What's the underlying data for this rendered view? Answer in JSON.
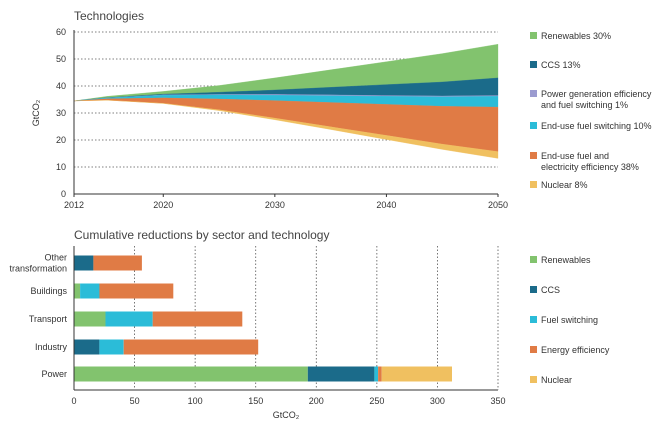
{
  "chart_data": [
    {
      "type": "area",
      "title": "Technologies",
      "ylabel": "GtCO₂",
      "ylim": [
        0,
        60
      ],
      "yticks": [
        0,
        10,
        20,
        30,
        40,
        50,
        60
      ],
      "xticks": [
        2012,
        2020,
        2030,
        2040,
        2050
      ],
      "x": [
        2012,
        2015,
        2020,
        2025,
        2030,
        2035,
        2040,
        2045,
        2050
      ],
      "baseline": [
        34.5,
        36.2,
        38.0,
        40.2,
        43.0,
        46.0,
        49.0,
        52.0,
        55.5
      ],
      "grid": "horizontal-dotted",
      "legend_position": "right",
      "series": [
        {
          "name": "Renewables 30%",
          "color": "#82c36e",
          "values": [
            0.0,
            0.5,
            1.0,
            2.5,
            4.5,
            6.5,
            8.5,
            10.5,
            12.5
          ]
        },
        {
          "name": "CCS 13%",
          "color": "#1b6b8a",
          "values": [
            0.0,
            0.1,
            0.3,
            0.8,
            1.6,
            2.8,
            4.0,
            5.2,
            6.5
          ]
        },
        {
          "name": "Power generation efficiency and fuel switching 1%",
          "color": "#9b9bd0",
          "values": [
            0.0,
            0.05,
            0.1,
            0.2,
            0.3,
            0.3,
            0.3,
            0.3,
            0.3
          ]
        },
        {
          "name": "End-use fuel switching 10%",
          "color": "#2bbcd8",
          "values": [
            0.0,
            0.3,
            1.0,
            1.5,
            2.0,
            2.5,
            3.0,
            3.5,
            4.0
          ]
        },
        {
          "name": "End-use fuel and electricity efficiency 38%",
          "color": "#e07b45",
          "values": [
            0.0,
            0.5,
            2.0,
            4.0,
            6.5,
            9.0,
            11.5,
            14.0,
            16.5
          ]
        },
        {
          "name": "Nuclear 8%",
          "color": "#f0c060",
          "values": [
            0.0,
            0.0,
            0.1,
            0.3,
            0.6,
            1.0,
            1.5,
            2.0,
            2.5
          ]
        }
      ]
    },
    {
      "type": "bar",
      "orientation": "horizontal",
      "stacked": true,
      "title": "Cumulative reductions by sector and technology",
      "xlabel": "GtCO₂",
      "xlim": [
        0,
        350
      ],
      "xticks": [
        0,
        50,
        100,
        150,
        200,
        250,
        300,
        350
      ],
      "grid": "vertical-dotted",
      "legend_position": "right",
      "categories": [
        "Other transformation",
        "Buildings",
        "Transport",
        "Industry",
        "Power"
      ],
      "category_lines": [
        [
          "Other",
          "transformation"
        ],
        [
          "Buildings"
        ],
        [
          "Transport"
        ],
        [
          "Industry"
        ],
        [
          "Power"
        ]
      ],
      "series": [
        {
          "name": "Renewables",
          "color": "#82c36e",
          "values": [
            0,
            5,
            26,
            0,
            193
          ]
        },
        {
          "name": "CCS",
          "color": "#1b6b8a",
          "values": [
            16,
            0,
            0,
            21,
            55
          ]
        },
        {
          "name": "Fuel switching",
          "color": "#2bbcd8",
          "values": [
            0,
            16,
            39,
            20,
            3
          ]
        },
        {
          "name": "Energy efficiency",
          "color": "#e07b45",
          "values": [
            40,
            61,
            74,
            111,
            3
          ]
        },
        {
          "name": "Nuclear",
          "color": "#f0c060",
          "values": [
            0,
            0,
            0,
            0,
            58
          ]
        }
      ]
    }
  ]
}
